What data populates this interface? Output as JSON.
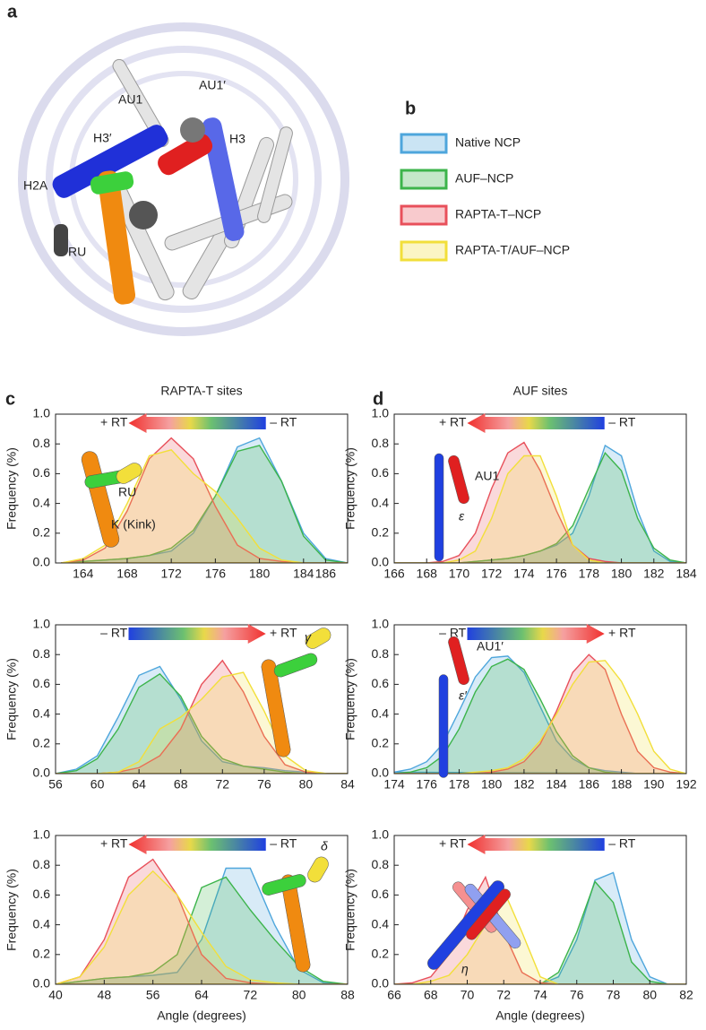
{
  "panel_a": {
    "label": "a",
    "labels": [
      "AU1",
      "AU1′",
      "H3′",
      "H3",
      "H2A",
      "RU"
    ]
  },
  "panel_b": {
    "label": "b",
    "legend": [
      {
        "name": "Native NCP",
        "color": "#4ea6dc"
      },
      {
        "name": "AUF–NCP",
        "color": "#3cb44b"
      },
      {
        "name": "RAPTA-T–NCP",
        "color": "#e8505b"
      },
      {
        "name": "RAPTA-T/AUF–NCP",
        "color": "#f2df3a"
      }
    ]
  },
  "panel_c": {
    "label": "c"
  },
  "panel_d": {
    "label": "d"
  },
  "chart_data": [
    {
      "type": "area",
      "title": "RAPTA-T sites",
      "ylabel": "Frequency (%)",
      "arrow_direction": "left",
      "annotations": [
        "+ RT",
        "– RT",
        "RU",
        "K (Kink)"
      ],
      "x": [
        162,
        164,
        166,
        168,
        170,
        172,
        174,
        176,
        178,
        180,
        182,
        184,
        186,
        188
      ],
      "xlim": [
        161.5,
        188
      ],
      "xticks": [
        164,
        168,
        172,
        176,
        180,
        184,
        186
      ],
      "ylim": [
        0,
        1
      ],
      "yticks": [
        {
          "value": 0,
          "label": "0.0"
        },
        0.2,
        0.4,
        0.6,
        0.8,
        {
          "value": 1,
          "label": "1.0"
        }
      ],
      "series": [
        {
          "color": "#4ea6dc",
          "values": [
            0,
            0.01,
            0.02,
            0.03,
            0.05,
            0.08,
            0.2,
            0.45,
            0.78,
            0.84,
            0.55,
            0.2,
            0.03,
            0
          ]
        },
        {
          "color": "#3cb44b",
          "values": [
            0,
            0.01,
            0.02,
            0.03,
            0.05,
            0.1,
            0.22,
            0.45,
            0.75,
            0.79,
            0.55,
            0.18,
            0.02,
            0
          ]
        },
        {
          "color": "#e8505b",
          "values": [
            0,
            0.02,
            0.1,
            0.35,
            0.7,
            0.84,
            0.7,
            0.38,
            0.12,
            0.03,
            0.01,
            0,
            0,
            0
          ]
        },
        {
          "color": "#f2df3a",
          "values": [
            0,
            0.03,
            0.12,
            0.4,
            0.72,
            0.76,
            0.6,
            0.48,
            0.3,
            0.1,
            0.02,
            0,
            0,
            0
          ]
        }
      ]
    },
    {
      "type": "area",
      "ylabel": "Frequency (%)",
      "arrow_direction": "right",
      "annotations": [
        "– RT",
        "+ RT",
        "γ"
      ],
      "x": [
        56,
        58,
        60,
        62,
        64,
        66,
        68,
        70,
        72,
        74,
        76,
        78,
        80,
        82,
        84
      ],
      "xlim": [
        56,
        84
      ],
      "xticks": [
        56,
        60,
        64,
        68,
        72,
        76,
        80,
        84
      ],
      "ylim": [
        0,
        1
      ],
      "yticks": [
        {
          "value": 0,
          "label": "0.0"
        },
        0.2,
        0.4,
        0.6,
        0.8,
        {
          "value": 1,
          "label": "1.0"
        }
      ],
      "series": [
        {
          "color": "#4ea6dc",
          "values": [
            0,
            0.03,
            0.12,
            0.38,
            0.66,
            0.72,
            0.5,
            0.22,
            0.08,
            0.05,
            0.04,
            0.02,
            0.01,
            0,
            0
          ]
        },
        {
          "color": "#3cb44b",
          "values": [
            0,
            0.02,
            0.1,
            0.3,
            0.58,
            0.67,
            0.52,
            0.25,
            0.1,
            0.05,
            0.03,
            0.01,
            0,
            0,
            0
          ]
        },
        {
          "color": "#e8505b",
          "values": [
            0,
            0,
            0,
            0.01,
            0.04,
            0.12,
            0.3,
            0.6,
            0.76,
            0.55,
            0.25,
            0.06,
            0.01,
            0,
            0
          ]
        },
        {
          "color": "#f2df3a",
          "values": [
            0,
            0,
            0,
            0.01,
            0.08,
            0.3,
            0.38,
            0.5,
            0.65,
            0.68,
            0.42,
            0.12,
            0.02,
            0,
            0
          ]
        }
      ]
    },
    {
      "type": "area",
      "ylabel": "Frequency (%)",
      "xlabel": "Angle (degrees)",
      "arrow_direction": "left",
      "annotations": [
        "+ RT",
        "– RT",
        "δ"
      ],
      "x": [
        40,
        44,
        48,
        52,
        56,
        60,
        64,
        68,
        72,
        76,
        80,
        84,
        88
      ],
      "xlim": [
        40,
        88
      ],
      "xticks": [
        40,
        48,
        56,
        64,
        72,
        80,
        88
      ],
      "ylim": [
        0,
        1
      ],
      "yticks": [
        {
          "value": 0,
          "label": "0.0"
        },
        0.2,
        0.4,
        0.6,
        0.8,
        {
          "value": 1,
          "label": "1.0"
        }
      ],
      "series": [
        {
          "color": "#4ea6dc",
          "values": [
            0,
            0.02,
            0.04,
            0.05,
            0.06,
            0.08,
            0.3,
            0.78,
            0.78,
            0.4,
            0.1,
            0.01,
            0
          ]
        },
        {
          "color": "#3cb44b",
          "values": [
            0,
            0.02,
            0.04,
            0.05,
            0.08,
            0.2,
            0.65,
            0.72,
            0.5,
            0.3,
            0.12,
            0.02,
            0
          ]
        },
        {
          "color": "#e8505b",
          "values": [
            0,
            0.05,
            0.3,
            0.72,
            0.84,
            0.6,
            0.2,
            0.04,
            0.01,
            0,
            0,
            0,
            0
          ]
        },
        {
          "color": "#f2df3a",
          "values": [
            0,
            0.05,
            0.25,
            0.6,
            0.76,
            0.6,
            0.35,
            0.12,
            0.03,
            0.01,
            0,
            0,
            0
          ]
        }
      ]
    },
    {
      "type": "area",
      "title": "AUF sites",
      "ylabel": "Frequency (%)",
      "arrow_direction": "left",
      "annotations": [
        "+ RT",
        "– RT",
        "AU1",
        "ε"
      ],
      "x": [
        166,
        167,
        168,
        169,
        170,
        171,
        172,
        173,
        174,
        175,
        176,
        177,
        178,
        179,
        180,
        181,
        182,
        183,
        184
      ],
      "xlim": [
        166,
        184
      ],
      "xticks": [
        166,
        168,
        170,
        172,
        174,
        176,
        178,
        180,
        182,
        184
      ],
      "ylim": [
        0,
        1
      ],
      "yticks": [
        {
          "value": 0,
          "label": "0.0"
        },
        0.2,
        0.4,
        0.6,
        0.8,
        {
          "value": 1,
          "label": "1.0"
        }
      ],
      "series": [
        {
          "color": "#4ea6dc",
          "values": [
            0,
            0,
            0,
            0,
            0,
            0.01,
            0.02,
            0.03,
            0.05,
            0.08,
            0.12,
            0.2,
            0.45,
            0.79,
            0.72,
            0.35,
            0.08,
            0.01,
            0
          ]
        },
        {
          "color": "#3cb44b",
          "values": [
            0,
            0,
            0,
            0,
            0,
            0.01,
            0.02,
            0.03,
            0.05,
            0.08,
            0.13,
            0.25,
            0.5,
            0.74,
            0.62,
            0.3,
            0.1,
            0.02,
            0
          ]
        },
        {
          "color": "#e8505b",
          "values": [
            0,
            0,
            0,
            0.01,
            0.05,
            0.2,
            0.5,
            0.74,
            0.81,
            0.62,
            0.35,
            0.12,
            0.03,
            0.01,
            0,
            0,
            0,
            0,
            0
          ]
        },
        {
          "color": "#f2df3a",
          "values": [
            0,
            0,
            0,
            0,
            0.02,
            0.08,
            0.3,
            0.6,
            0.72,
            0.72,
            0.45,
            0.12,
            0.02,
            0,
            0,
            0,
            0,
            0,
            0
          ]
        }
      ]
    },
    {
      "type": "area",
      "ylabel": "Frequency (%)",
      "arrow_direction": "right",
      "annotations": [
        "– RT",
        "+ RT",
        "AU1′",
        "ε′"
      ],
      "x": [
        174,
        175,
        176,
        177,
        178,
        179,
        180,
        181,
        182,
        183,
        184,
        185,
        186,
        187,
        188,
        189,
        190,
        191,
        192
      ],
      "xlim": [
        174,
        192
      ],
      "xticks": [
        174,
        176,
        178,
        180,
        182,
        184,
        186,
        188,
        190,
        192
      ],
      "ylim": [
        0,
        1
      ],
      "yticks": [
        {
          "value": 0,
          "label": "0.0"
        },
        0.2,
        0.4,
        0.6,
        0.8,
        {
          "value": 1,
          "label": "1.0"
        }
      ],
      "series": [
        {
          "color": "#4ea6dc",
          "values": [
            0.01,
            0.03,
            0.08,
            0.2,
            0.42,
            0.65,
            0.78,
            0.79,
            0.68,
            0.45,
            0.22,
            0.1,
            0.04,
            0.02,
            0.01,
            0,
            0,
            0,
            0
          ]
        },
        {
          "color": "#3cb44b",
          "values": [
            0,
            0.01,
            0.04,
            0.12,
            0.3,
            0.55,
            0.72,
            0.77,
            0.7,
            0.5,
            0.28,
            0.12,
            0.04,
            0.01,
            0,
            0,
            0,
            0,
            0
          ]
        },
        {
          "color": "#e8505b",
          "values": [
            0,
            0,
            0,
            0,
            0,
            0,
            0.01,
            0.03,
            0.08,
            0.2,
            0.42,
            0.68,
            0.8,
            0.7,
            0.4,
            0.15,
            0.04,
            0.01,
            0
          ]
        },
        {
          "color": "#f2df3a",
          "values": [
            0,
            0,
            0,
            0,
            0,
            0.01,
            0.02,
            0.04,
            0.1,
            0.22,
            0.4,
            0.6,
            0.75,
            0.76,
            0.62,
            0.4,
            0.15,
            0.03,
            0
          ]
        }
      ]
    },
    {
      "type": "area",
      "ylabel": "Frequency (%)",
      "xlabel": "Angle (degrees)",
      "arrow_direction": "left",
      "annotations": [
        "+ RT",
        "– RT",
        "η"
      ],
      "x": [
        66,
        67,
        68,
        69,
        70,
        71,
        72,
        73,
        74,
        75,
        76,
        77,
        78,
        79,
        80,
        81,
        82
      ],
      "xlim": [
        66,
        82
      ],
      "xticks": [
        66,
        68,
        70,
        72,
        74,
        76,
        78,
        80,
        82
      ],
      "ylim": [
        0,
        1
      ],
      "yticks": [
        {
          "value": 0,
          "label": "0.0"
        },
        0.2,
        0.4,
        0.6,
        0.8,
        {
          "value": 1,
          "label": "1.0"
        }
      ],
      "series": [
        {
          "color": "#4ea6dc",
          "values": [
            0,
            0,
            0,
            0,
            0,
            0,
            0,
            0,
            0,
            0.05,
            0.3,
            0.7,
            0.75,
            0.3,
            0.05,
            0,
            0
          ]
        },
        {
          "color": "#3cb44b",
          "values": [
            0,
            0,
            0,
            0,
            0,
            0,
            0,
            0,
            0,
            0.08,
            0.35,
            0.69,
            0.55,
            0.15,
            0.02,
            0,
            0
          ]
        },
        {
          "color": "#e8505b",
          "values": [
            0,
            0.01,
            0.05,
            0.2,
            0.5,
            0.72,
            0.35,
            0.08,
            0.01,
            0,
            0,
            0,
            0,
            0,
            0,
            0,
            0
          ]
        },
        {
          "color": "#f2df3a",
          "values": [
            0,
            0,
            0.02,
            0.06,
            0.2,
            0.4,
            0.63,
            0.35,
            0.05,
            0,
            0,
            0,
            0,
            0,
            0,
            0,
            0
          ]
        }
      ]
    }
  ]
}
